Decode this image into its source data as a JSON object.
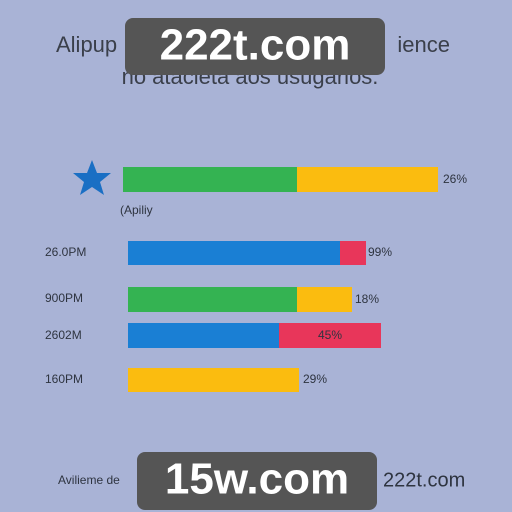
{
  "header": {
    "title_left": "Alipup",
    "title_right": "ience",
    "subtitle": "no atacieta aos usugarios."
  },
  "legend": {
    "label": "(Apiliy"
  },
  "rows": [
    {
      "label": null,
      "value_label": "26%"
    },
    {
      "label": "26.0PM",
      "value_label": "99%"
    },
    {
      "label": "900PM",
      "value_label": "18%"
    },
    {
      "label": "2602M",
      "value_label": "45%"
    },
    {
      "label": "160PM",
      "value_label": "29%"
    }
  ],
  "footer": {
    "left": "Avilieme de",
    "right": "222t.com"
  },
  "watermarks": [
    "222t.com",
    "15w.com"
  ]
}
